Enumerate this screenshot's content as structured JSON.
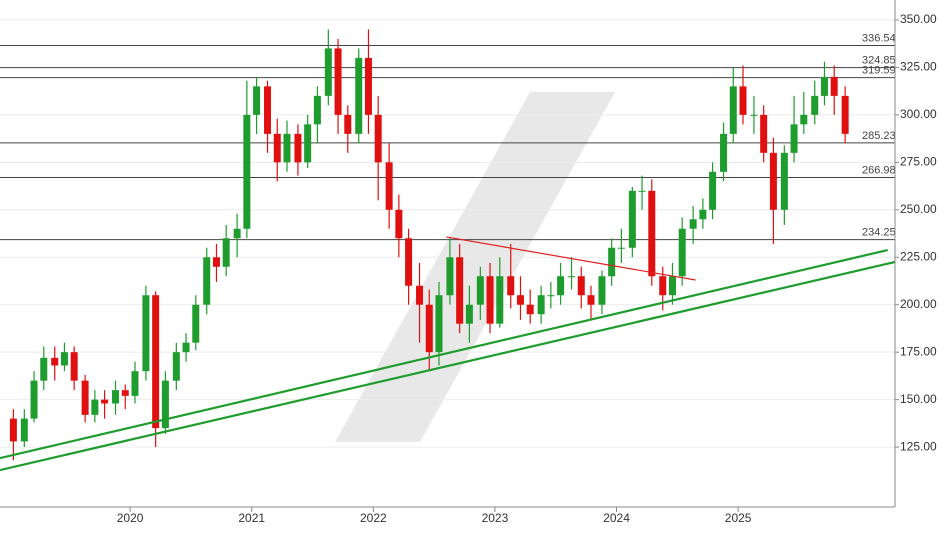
{
  "chart_data": {
    "type": "candlestick",
    "up_color": "#1e9c2e",
    "down_color": "#e01010",
    "xlim": [
      2018.93,
      2026.29
    ],
    "xticks": [
      2020,
      2021,
      2022,
      2023,
      2024,
      2025
    ],
    "ylim": [
      94.5,
      360.5
    ],
    "yticks": [
      {
        "value": 125,
        "label": "125.00"
      },
      {
        "value": 150,
        "label": "150.00"
      },
      {
        "value": 175,
        "label": "175.00"
      },
      {
        "value": 200,
        "label": "200.00"
      },
      {
        "value": 225,
        "label": "225.00"
      },
      {
        "value": 250,
        "label": "250.00"
      },
      {
        "value": 275,
        "label": "275.00"
      },
      {
        "value": 300,
        "label": "300.00"
      },
      {
        "value": 325,
        "label": "325.00"
      },
      {
        "value": 350,
        "label": "350.00"
      }
    ],
    "grid": true,
    "x": [
      2019.04,
      2019.13,
      2019.21,
      2019.29,
      2019.38,
      2019.46,
      2019.54,
      2019.63,
      2019.71,
      2019.79,
      2019.88,
      2019.96,
      2020.04,
      2020.13,
      2020.21,
      2020.29,
      2020.38,
      2020.46,
      2020.54,
      2020.63,
      2020.71,
      2020.79,
      2020.88,
      2020.96,
      2021.04,
      2021.13,
      2021.21,
      2021.29,
      2021.38,
      2021.46,
      2021.54,
      2021.63,
      2021.71,
      2021.79,
      2021.88,
      2021.96,
      2022.04,
      2022.13,
      2022.21,
      2022.29,
      2022.38,
      2022.46,
      2022.54,
      2022.63,
      2022.71,
      2022.79,
      2022.88,
      2022.96,
      2023.04,
      2023.13,
      2023.21,
      2023.29,
      2023.38,
      2023.46,
      2023.54,
      2023.63,
      2023.71,
      2023.79,
      2023.88,
      2023.96,
      2024.04,
      2024.13,
      2024.21,
      2024.29,
      2024.38,
      2024.46,
      2024.54,
      2024.63,
      2024.71,
      2024.79,
      2024.88,
      2024.96,
      2025.04,
      2025.13,
      2025.21,
      2025.29,
      2025.38,
      2025.46,
      2025.54,
      2025.63,
      2025.71,
      2025.79,
      2025.88
    ],
    "open": [
      140,
      128,
      140,
      160,
      172,
      168,
      175,
      160,
      142,
      150,
      148,
      155,
      152,
      165,
      205,
      135,
      160,
      175,
      180,
      200,
      225,
      220,
      235,
      240,
      300,
      315,
      290,
      275,
      290,
      275,
      295,
      310,
      335,
      300,
      290,
      330,
      300,
      275,
      250,
      235,
      210,
      200,
      175,
      205,
      225,
      190,
      200,
      215,
      190,
      215,
      205,
      200,
      195,
      205,
      205,
      215,
      215,
      205,
      200,
      215,
      230,
      230,
      260,
      260,
      215,
      205,
      215,
      240,
      245,
      250,
      270,
      290,
      315,
      300,
      300,
      280,
      250,
      280,
      295,
      300,
      310,
      320,
      310
    ],
    "high": [
      145,
      145,
      165,
      178,
      178,
      180,
      178,
      163,
      155,
      155,
      160,
      158,
      170,
      210,
      207,
      165,
      180,
      185,
      205,
      230,
      232,
      242,
      248,
      318,
      320,
      318,
      298,
      297,
      295,
      300,
      315,
      345,
      340,
      305,
      335,
      345,
      310,
      285,
      258,
      240,
      222,
      208,
      212,
      235,
      232,
      210,
      220,
      222,
      225,
      232,
      215,
      208,
      210,
      212,
      222,
      225,
      220,
      210,
      218,
      235,
      240,
      262,
      268,
      266,
      220,
      222,
      246,
      252,
      256,
      275,
      296,
      325,
      326,
      310,
      305,
      288,
      284,
      310,
      312,
      318,
      328,
      326,
      315
    ],
    "low": [
      118,
      125,
      138,
      155,
      160,
      165,
      155,
      138,
      138,
      140,
      142,
      145,
      148,
      160,
      125,
      132,
      155,
      170,
      176,
      195,
      212,
      215,
      225,
      235,
      290,
      280,
      265,
      270,
      268,
      272,
      285,
      305,
      290,
      280,
      285,
      290,
      255,
      240,
      225,
      200,
      180,
      165,
      168,
      200,
      185,
      180,
      192,
      185,
      188,
      198,
      192,
      190,
      190,
      198,
      200,
      208,
      198,
      192,
      195,
      210,
      222,
      225,
      250,
      210,
      197,
      200,
      210,
      232,
      240,
      245,
      265,
      285,
      295,
      290,
      275,
      232,
      242,
      275,
      290,
      295,
      305,
      300,
      285
    ],
    "close": [
      128,
      140,
      160,
      172,
      168,
      175,
      160,
      142,
      150,
      148,
      155,
      152,
      165,
      205,
      135,
      160,
      175,
      180,
      200,
      225,
      220,
      235,
      240,
      300,
      315,
      290,
      275,
      290,
      275,
      295,
      310,
      335,
      300,
      290,
      330,
      300,
      275,
      250,
      235,
      210,
      200,
      175,
      205,
      225,
      190,
      200,
      215,
      190,
      215,
      205,
      200,
      195,
      205,
      205,
      215,
      215,
      205,
      200,
      215,
      230,
      230,
      260,
      260,
      215,
      205,
      215,
      240,
      245,
      250,
      270,
      290,
      315,
      300,
      300,
      280,
      250,
      280,
      295,
      300,
      310,
      320,
      310,
      290
    ],
    "levels": [
      336.54,
      324.85,
      319.59,
      285.23,
      266.98,
      234.25
    ],
    "level_color": "#444444",
    "trendlines": [
      {
        "color": "#1e9c2e",
        "x": [
          2018.93,
          2026.23
        ],
        "y": [
          119.2,
          228.8
        ]
      },
      {
        "color": "#1e9c2e",
        "x": [
          2018.93,
          2026.29
        ],
        "y": [
          112.9,
          222.5
        ]
      },
      {
        "color": "#e02020",
        "x": [
          2022.6,
          2024.65
        ],
        "y": [
          235.7,
          213.0
        ]
      }
    ]
  }
}
